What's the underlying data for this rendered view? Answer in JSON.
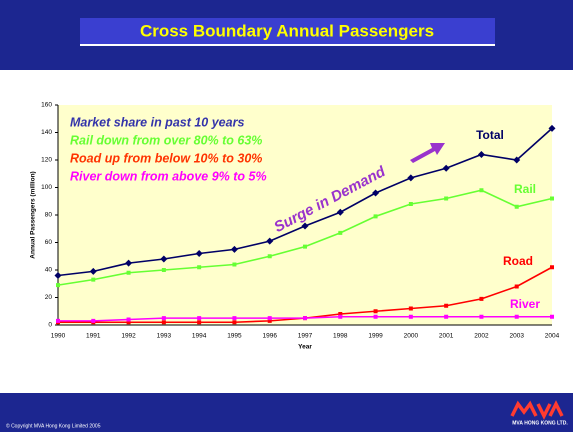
{
  "chart_data": {
    "type": "line",
    "title": "Cross Boundary Annual Passengers",
    "y_label": "Annual Passengers (million)",
    "x_label": "Year",
    "categories": [
      "1990",
      "1991",
      "1992",
      "1993",
      "1994",
      "1995",
      "1996",
      "1997",
      "1998",
      "1999",
      "2000",
      "2001",
      "2002",
      "2003",
      "2004"
    ],
    "series": [
      {
        "name": "Total",
        "color": "#000066",
        "values": [
          36,
          39,
          45,
          48,
          52,
          55,
          61,
          72,
          82,
          96,
          107,
          114,
          124,
          120,
          143
        ]
      },
      {
        "name": "Rail",
        "color": "#66ff33",
        "values": [
          29,
          33,
          38,
          40,
          42,
          44,
          50,
          57,
          67,
          79,
          88,
          92,
          98,
          86,
          92
        ]
      },
      {
        "name": "Road",
        "color": "#ff0000",
        "values": [
          2,
          2,
          2,
          2,
          2,
          2,
          3,
          5,
          8,
          10,
          12,
          14,
          19,
          28,
          42
        ]
      },
      {
        "name": "River",
        "color": "#ff00ff",
        "values": [
          3,
          3,
          4,
          5,
          5,
          5,
          5,
          5,
          6,
          6,
          6,
          6,
          6,
          6,
          6
        ]
      }
    ],
    "ylim": [
      0,
      160
    ],
    "yticks": [
      0,
      20,
      40,
      60,
      80,
      100,
      120,
      140,
      160
    ],
    "annotations": [
      {
        "text": "Market share in past 10 years",
        "color": "#3333aa"
      },
      {
        "text": "Rail down from over 80% to 63%",
        "color": "#66ff33"
      },
      {
        "text": "Road up from below 10% to 30%",
        "color": "#ff3300"
      },
      {
        "text": "River down from above 9% to 5%",
        "color": "#ff00ff"
      },
      {
        "text": "Surge in Demand",
        "color": "#9933cc"
      }
    ],
    "footer": "© Copyright MVA Hong Kong Limited 2005",
    "logo": "MVA HONG KONG LTD."
  }
}
